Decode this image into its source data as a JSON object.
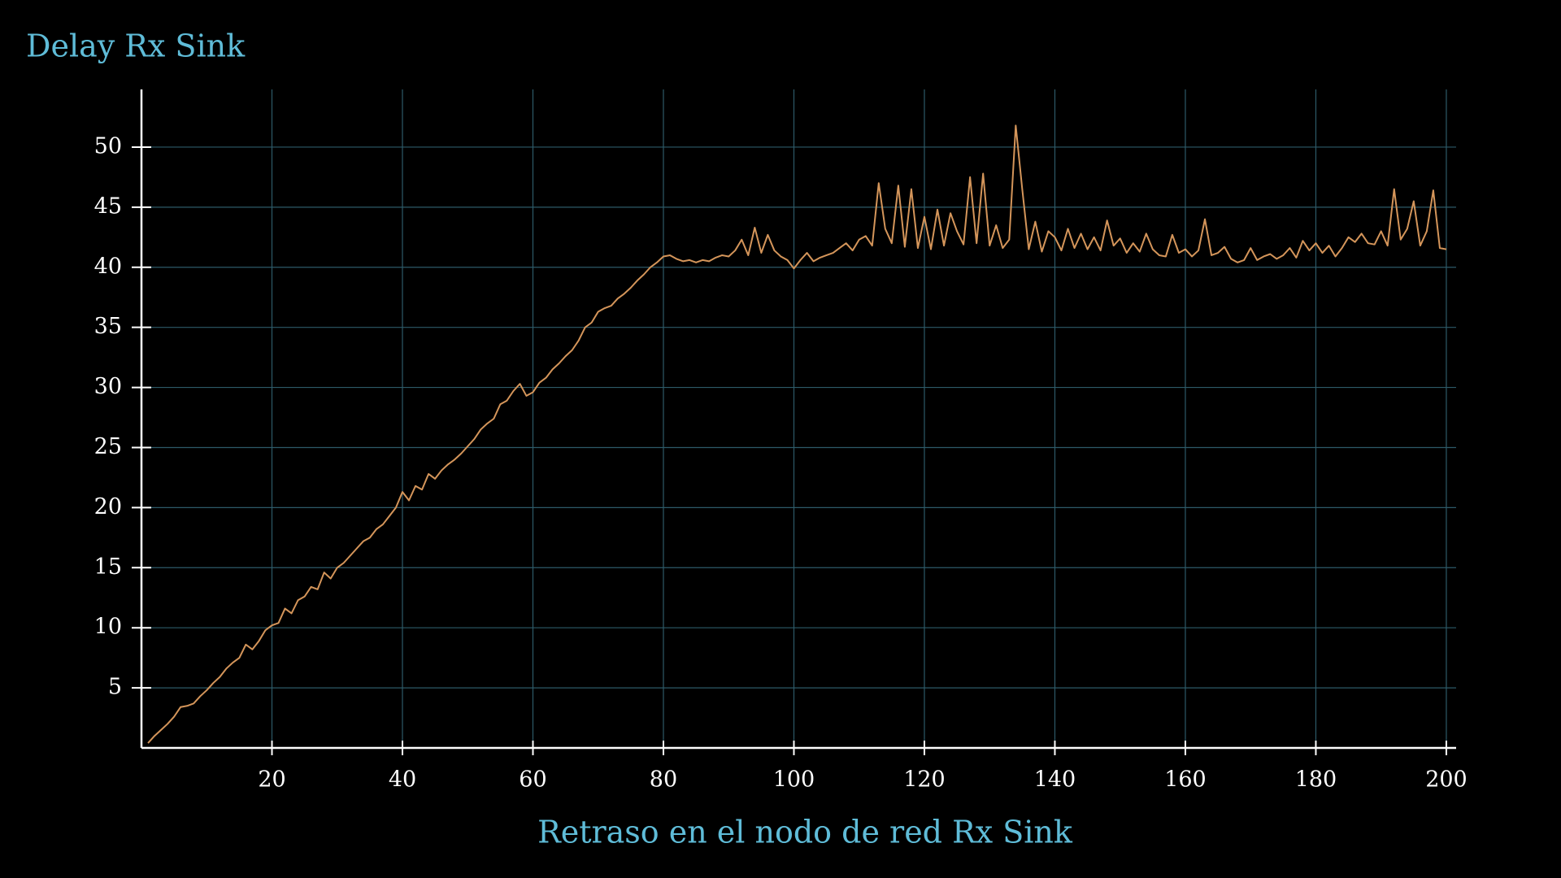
{
  "chart_data": {
    "type": "line",
    "title": "Delay Rx Sink",
    "x_label": "Retraso en el nodo de red Rx Sink",
    "grid": true,
    "xlim": [
      0,
      201.5
    ],
    "ylim": [
      0,
      54.8
    ],
    "xticks": [
      20,
      40,
      60,
      80,
      100,
      120,
      140,
      160,
      180,
      200
    ],
    "yticks": [
      5,
      10,
      15,
      20,
      25,
      30,
      35,
      40,
      45,
      50
    ],
    "x": [
      1,
      2,
      3,
      4,
      5,
      6,
      7,
      8,
      9,
      10,
      11,
      12,
      13,
      14,
      15,
      16,
      17,
      18,
      19,
      20,
      21,
      22,
      23,
      24,
      25,
      26,
      27,
      28,
      29,
      30,
      31,
      32,
      33,
      34,
      35,
      36,
      37,
      38,
      39,
      40,
      41,
      42,
      43,
      44,
      45,
      46,
      47,
      48,
      49,
      50,
      51,
      52,
      53,
      54,
      55,
      56,
      57,
      58,
      59,
      60,
      61,
      62,
      63,
      64,
      65,
      66,
      67,
      68,
      69,
      70,
      71,
      72,
      73,
      74,
      75,
      76,
      77,
      78,
      79,
      80,
      81,
      82,
      83,
      84,
      85,
      86,
      87,
      88,
      89,
      90,
      91,
      92,
      93,
      94,
      95,
      96,
      97,
      98,
      99,
      100,
      101,
      102,
      103,
      104,
      105,
      106,
      107,
      108,
      109,
      110,
      111,
      112,
      113,
      114,
      115,
      116,
      117,
      118,
      119,
      120,
      121,
      122,
      123,
      124,
      125,
      126,
      127,
      128,
      129,
      130,
      131,
      132,
      133,
      134,
      135,
      136,
      137,
      138,
      139,
      140,
      141,
      142,
      143,
      144,
      145,
      146,
      147,
      148,
      149,
      150,
      151,
      152,
      153,
      154,
      155,
      156,
      157,
      158,
      159,
      160,
      161,
      162,
      163,
      164,
      165,
      166,
      167,
      168,
      169,
      170,
      171,
      172,
      173,
      174,
      175,
      176,
      177,
      178,
      179,
      180,
      181,
      182,
      183,
      184,
      185,
      186,
      187,
      188,
      189,
      190,
      191,
      192,
      193,
      194,
      195,
      196,
      197,
      198,
      199,
      200
    ],
    "series": [
      {
        "color": "#d4955a",
        "values": [
          0.4,
          1.0,
          1.5,
          2.0,
          2.6,
          3.4,
          3.5,
          3.7,
          4.3,
          4.8,
          5.4,
          5.9,
          6.6,
          7.1,
          7.5,
          8.6,
          8.2,
          8.9,
          9.8,
          10.2,
          10.4,
          11.6,
          11.2,
          12.3,
          12.6,
          13.4,
          13.2,
          14.6,
          14.1,
          15.0,
          15.4,
          16.0,
          16.6,
          17.2,
          17.5,
          18.2,
          18.6,
          19.3,
          20.0,
          21.3,
          20.6,
          21.8,
          21.5,
          22.8,
          22.4,
          23.1,
          23.6,
          24.0,
          24.5,
          25.1,
          25.7,
          26.5,
          27.0,
          27.4,
          28.6,
          28.9,
          29.7,
          30.3,
          29.3,
          29.6,
          30.4,
          30.8,
          31.5,
          32.0,
          32.6,
          33.1,
          33.9,
          35.0,
          35.4,
          36.3,
          36.6,
          36.8,
          37.4,
          37.8,
          38.3,
          38.9,
          39.4,
          40.0,
          40.4,
          40.9,
          41.0,
          40.7,
          40.5,
          40.6,
          40.4,
          40.6,
          40.5,
          40.8,
          41.0,
          40.9,
          41.4,
          42.3,
          41.0,
          43.3,
          41.2,
          42.7,
          41.4,
          40.9,
          40.6,
          39.9,
          40.6,
          41.2,
          40.5,
          40.8,
          41.0,
          41.2,
          41.6,
          42.0,
          41.4,
          42.3,
          42.6,
          41.8,
          47.0,
          43.2,
          42.0,
          46.8,
          41.7,
          46.5,
          41.6,
          44.2,
          41.5,
          44.8,
          41.8,
          44.5,
          43.0,
          41.9,
          47.5,
          42.0,
          47.8,
          41.8,
          43.5,
          41.6,
          42.3,
          51.8,
          46.5,
          41.5,
          43.8,
          41.3,
          43.0,
          42.5,
          41.4,
          43.2,
          41.6,
          42.8,
          41.5,
          42.5,
          41.4,
          43.9,
          41.8,
          42.4,
          41.2,
          42.0,
          41.3,
          42.8,
          41.5,
          41.0,
          40.9,
          42.7,
          41.2,
          41.5,
          40.9,
          41.4,
          44.0,
          41.0,
          41.2,
          41.7,
          40.7,
          40.4,
          40.6,
          41.6,
          40.6,
          40.9,
          41.1,
          40.7,
          41.0,
          41.6,
          40.8,
          42.2,
          41.4,
          42.0,
          41.2,
          41.8,
          40.9,
          41.6,
          42.5,
          42.1,
          42.8,
          42.0,
          41.9,
          43.0,
          41.8,
          46.5,
          42.3,
          43.2,
          45.5,
          41.8,
          43.0,
          46.4,
          41.6,
          41.5
        ]
      }
    ]
  }
}
